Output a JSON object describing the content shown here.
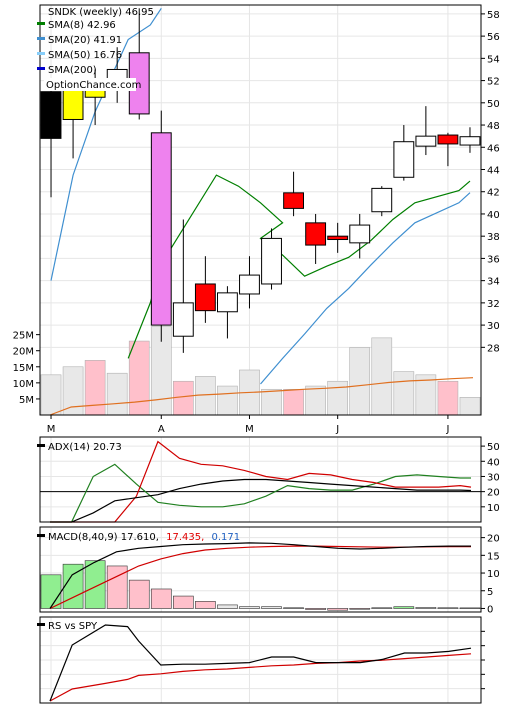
{
  "chart_data": {
    "type": "candlestick",
    "title": "SNDK (weekly) 46.95",
    "watermark": "OptionChance.com",
    "price_axis": {
      "range": [
        26.5,
        58.8
      ],
      "ticks": [
        28,
        30,
        32,
        34,
        36,
        38,
        40,
        42,
        44,
        46,
        48,
        50,
        52,
        54,
        56,
        58
      ]
    },
    "volume_axis": {
      "range": [
        0,
        28
      ],
      "ticks": [
        5,
        10,
        15,
        20,
        25
      ],
      "tick_labels": [
        "5M",
        "10M",
        "15M",
        "20M",
        "25M"
      ]
    },
    "x_labels": [
      {
        "label": "M",
        "index": 0.5
      },
      {
        "label": "A",
        "index": 5.5
      },
      {
        "label": "M",
        "index": 9.5
      },
      {
        "label": "J",
        "index": 13.5
      },
      {
        "label": "J",
        "index": 18.5
      }
    ],
    "legend": [
      {
        "label": "SMA(8) 42.96",
        "color": "#007f00"
      },
      {
        "label": "SMA(20) 41.91",
        "color": "#3f8fd0"
      },
      {
        "label": "SMA(50) 16.76",
        "color": "#87cefa"
      },
      {
        "label": "SMA(200)",
        "color": "#0000cc"
      }
    ],
    "candles": [
      {
        "o": 46.8,
        "h": 51.5,
        "l": 41.5,
        "c": 51.0,
        "color": "#000000"
      },
      {
        "o": 48.5,
        "h": 52.0,
        "l": 45.0,
        "c": 51.5,
        "color": "#ffff00"
      },
      {
        "o": 50.5,
        "h": 53.0,
        "l": 48.0,
        "c": 51.5,
        "color": "#ffff00"
      },
      {
        "o": 51.8,
        "h": 55.0,
        "l": 50.0,
        "c": 53.0,
        "color": "#ffffff"
      },
      {
        "o": 54.5,
        "h": 58.5,
        "l": 48.5,
        "c": 49.0,
        "color": "#ee82ee"
      },
      {
        "o": 47.3,
        "h": 49.3,
        "l": 28.5,
        "c": 30.0,
        "color": "#ee82ee"
      },
      {
        "o": 29.0,
        "h": 39.5,
        "l": 27.5,
        "c": 32.0,
        "color": "#ffffff"
      },
      {
        "o": 33.7,
        "h": 36.2,
        "l": 30.2,
        "c": 31.3,
        "color": "#ff0000"
      },
      {
        "o": 31.2,
        "h": 33.5,
        "l": 28.8,
        "c": 32.9,
        "color": "#ffffff"
      },
      {
        "o": 32.8,
        "h": 36.2,
        "l": 31.5,
        "c": 34.5,
        "color": "#ffffff"
      },
      {
        "o": 33.7,
        "h": 38.7,
        "l": 33.2,
        "c": 37.8,
        "color": "#ffffff"
      },
      {
        "o": 41.9,
        "h": 43.8,
        "l": 39.8,
        "c": 40.5,
        "color": "#ff0000"
      },
      {
        "o": 39.2,
        "h": 40.0,
        "l": 35.5,
        "c": 37.2,
        "color": "#ff0000"
      },
      {
        "o": 38.0,
        "h": 39.2,
        "l": 36.5,
        "c": 37.7,
        "color": "#ff0000"
      },
      {
        "o": 37.4,
        "h": 40.0,
        "l": 36.0,
        "c": 39.0,
        "color": "#ffffff"
      },
      {
        "o": 40.2,
        "h": 42.5,
        "l": 39.8,
        "c": 42.3,
        "color": "#ffffff"
      },
      {
        "o": 43.3,
        "h": 48.0,
        "l": 43.0,
        "c": 46.5,
        "color": "#ffffff"
      },
      {
        "o": 46.1,
        "h": 49.7,
        "l": 45.3,
        "c": 47.0,
        "color": "#ffffff"
      },
      {
        "o": 47.1,
        "h": 47.3,
        "l": 44.3,
        "c": 46.3,
        "color": "#ff0000"
      },
      {
        "o": 46.2,
        "h": 47.8,
        "l": 45.5,
        "c": 46.95,
        "color": "#ffffff"
      }
    ],
    "sma8": [
      null,
      null,
      null,
      null,
      27.0,
      32.0,
      35.5,
      43.5,
      42.5,
      41.0,
      39.2,
      37.8,
      36.3,
      34.4,
      35.3,
      36.1,
      37.6,
      39.5,
      41.0,
      42.1,
      42.96
    ],
    "sma20": [
      null,
      34.0,
      43.5,
      49.2,
      55.7,
      57.0,
      58.5,
      null,
      null,
      null,
      null,
      24.7,
      27.0,
      29.2,
      31.5,
      33.3,
      35.4,
      37.4,
      39.2,
      41.0,
      41.91
    ],
    "sma_points_x": [
      0,
      0,
      1,
      2,
      3.5,
      4.5,
      5,
      7.5,
      8.5,
      9.5,
      10.5,
      9.5,
      10.5,
      11.5,
      12.5,
      13.5,
      14.5,
      15.5,
      16.5,
      18.5,
      19
    ],
    "volume": [
      {
        "v": 12.5,
        "color": "#e8e8e8"
      },
      {
        "v": 15.0,
        "color": "#e8e8e8"
      },
      {
        "v": 17.0,
        "color": "#ffc0cb"
      },
      {
        "v": 13.0,
        "color": "#e8e8e8"
      },
      {
        "v": 23.0,
        "color": "#ffc0cb"
      },
      {
        "v": 27.5,
        "color": "#e8e8e8"
      },
      {
        "v": 10.5,
        "color": "#ffc0cb"
      },
      {
        "v": 12.0,
        "color": "#e8e8e8"
      },
      {
        "v": 9.0,
        "color": "#e8e8e8"
      },
      {
        "v": 14.0,
        "color": "#e8e8e8"
      },
      {
        "v": 8.0,
        "color": "#e8e8e8"
      },
      {
        "v": 8.0,
        "color": "#ffc0cb"
      },
      {
        "v": 9.0,
        "color": "#e8e8e8"
      },
      {
        "v": 10.5,
        "color": "#e8e8e8"
      },
      {
        "v": 21.0,
        "color": "#e8e8e8"
      },
      {
        "v": 24.0,
        "color": "#e8e8e8"
      },
      {
        "v": 13.5,
        "color": "#e8e8e8"
      },
      {
        "v": 12.5,
        "color": "#e8e8e8"
      },
      {
        "v": 10.5,
        "color": "#ffc0cb"
      },
      {
        "v": 5.5,
        "color": "#e8e8e8"
      }
    ],
    "volume_ma": [
      0,
      2.5,
      3.0,
      3.5,
      4.0,
      4.7,
      5.5,
      6.2,
      6.5,
      6.9,
      7.2,
      7.6,
      8.0,
      8.3,
      8.7,
      9.4,
      10.1,
      10.6,
      10.9,
      11.3,
      11.6
    ],
    "adx": {
      "label": "ADX(14) 20.73",
      "range": [
        0,
        56
      ],
      "ticks": [
        10,
        20,
        30,
        40,
        50
      ],
      "reference": 20,
      "adx": [
        0,
        0,
        6,
        14,
        16,
        18,
        22,
        25,
        27,
        28,
        28,
        27,
        26,
        25,
        24,
        23,
        22,
        21,
        21,
        21,
        20.73
      ],
      "plus": [
        0,
        0,
        30,
        38,
        25,
        13,
        11,
        10,
        10,
        12,
        17,
        24,
        22,
        21,
        21,
        25,
        30,
        31,
        30,
        29,
        29
      ],
      "minus": [
        0,
        0,
        0,
        0,
        17,
        53,
        42,
        38,
        37,
        34,
        30,
        28,
        32,
        31,
        28,
        26,
        23,
        23,
        23,
        24,
        23
      ],
      "points_x": [
        0,
        1,
        2,
        3,
        4,
        5,
        6,
        7,
        8,
        9,
        10,
        11,
        12,
        13,
        14,
        15,
        16,
        17,
        18,
        19,
        19.5
      ]
    },
    "macd": {
      "label": "MACD(8,40,9) 17.610,",
      "value2": "17.435,",
      "value3": "0.171",
      "range": [
        -1,
        23
      ],
      "ticks": [
        0,
        5,
        10,
        15,
        20
      ],
      "macd": [
        0,
        9.5,
        13,
        16,
        17,
        17.5,
        18,
        18.2,
        18.3,
        18.5,
        18.4,
        18.0,
        17.5,
        17.0,
        16.8,
        17.0,
        17.3,
        17.5,
        17.6,
        17.61
      ],
      "signal": [
        0,
        3,
        6,
        9,
        12,
        14,
        15.5,
        16.5,
        17,
        17.3,
        17.5,
        17.6,
        17.6,
        17.5,
        17.4,
        17.3,
        17.3,
        17.4,
        17.43,
        17.435
      ],
      "hist": [
        {
          "v": 9.5,
          "color": "#90ee90"
        },
        {
          "v": 12.5,
          "color": "#90ee90"
        },
        {
          "v": 13.5,
          "color": "#90ee90"
        },
        {
          "v": 12.0,
          "color": "#ffc0cb"
        },
        {
          "v": 8.0,
          "color": "#ffc0cb"
        },
        {
          "v": 5.5,
          "color": "#ffc0cb"
        },
        {
          "v": 3.5,
          "color": "#ffc0cb"
        },
        {
          "v": 2.0,
          "color": "#ffc0cb"
        },
        {
          "v": 1.0,
          "color": "#e8e8e8"
        },
        {
          "v": 0.5,
          "color": "#e8e8e8"
        },
        {
          "v": 0.5,
          "color": "#e8e8e8"
        },
        {
          "v": 0.2,
          "color": "#e8e8e8"
        },
        {
          "v": -0.3,
          "color": "#ffc0cb"
        },
        {
          "v": -0.5,
          "color": "#ffc0cb"
        },
        {
          "v": -0.2,
          "color": "#ffc0cb"
        },
        {
          "v": 0.2,
          "color": "#e8e8e8"
        },
        {
          "v": 0.5,
          "color": "#90ee90"
        },
        {
          "v": 0.3,
          "color": "#e8e8e8"
        },
        {
          "v": 0.2,
          "color": "#e8e8e8"
        },
        {
          "v": 0.171,
          "color": "#e8e8e8"
        }
      ]
    },
    "rs": {
      "label": "RS vs SPY",
      "range": [
        0,
        100
      ],
      "rs": [
        0,
        70,
        95,
        93,
        75,
        45,
        46,
        46,
        47,
        48,
        55,
        55,
        48,
        48,
        48,
        52,
        60,
        60,
        62,
        66
      ],
      "rs_ma": [
        0,
        15,
        22,
        27,
        32,
        34,
        37,
        39,
        40,
        42,
        44,
        45,
        47,
        48,
        50,
        51,
        53,
        55,
        57,
        59
      ],
      "points_x": [
        0,
        1,
        2.5,
        3.5,
        4,
        5,
        6,
        7,
        8,
        9,
        10,
        11,
        12,
        13,
        14,
        15,
        16,
        17,
        18,
        19
      ]
    }
  }
}
